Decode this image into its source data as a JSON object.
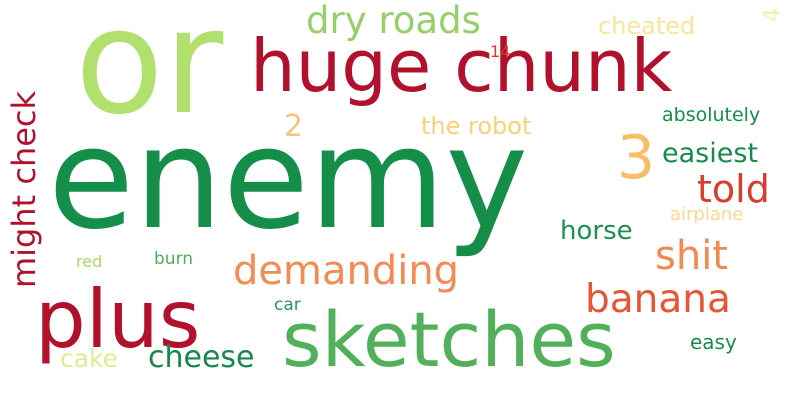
{
  "words": [
    {
      "text": "or",
      "color": "#b2e06f"
    },
    {
      "text": "enemy",
      "color": "#148e49"
    },
    {
      "text": "huge chunk",
      "color": "#b1112c"
    },
    {
      "text": "sketches",
      "color": "#52b05a"
    },
    {
      "text": "plus",
      "color": "#b1112c"
    },
    {
      "text": "3",
      "color": "#f9bd67"
    },
    {
      "text": "dry roads",
      "color": "#97cf6a"
    },
    {
      "text": "demanding",
      "color": "#f18c53"
    },
    {
      "text": "might check",
      "color": "#b1112c"
    },
    {
      "text": "banana",
      "color": "#e65636"
    },
    {
      "text": "shit",
      "color": "#f28a4f"
    },
    {
      "text": "told",
      "color": "#d73e2d"
    },
    {
      "text": "cheese",
      "color": "#18874a"
    },
    {
      "text": "the robot",
      "color": "#fad178"
    },
    {
      "text": "cheated",
      "color": "#fbe59a"
    },
    {
      "text": "easiest",
      "color": "#168a4a"
    },
    {
      "text": "horse",
      "color": "#1c9051"
    },
    {
      "text": "cake",
      "color": "#dced92"
    },
    {
      "text": "2",
      "color": "#fac57a"
    },
    {
      "text": "absolutely",
      "color": "#148e49"
    },
    {
      "text": "airplane",
      "color": "#fcd790"
    },
    {
      "text": "4",
      "color": "#f6eda8"
    },
    {
      "text": "14",
      "color": "#d8362f"
    },
    {
      "text": "red",
      "color": "#a9d96a"
    },
    {
      "text": "burn",
      "color": "#4eae5b"
    },
    {
      "text": "car",
      "color": "#2a9752"
    },
    {
      "text": "easy",
      "color": "#1a8d4b"
    }
  ]
}
